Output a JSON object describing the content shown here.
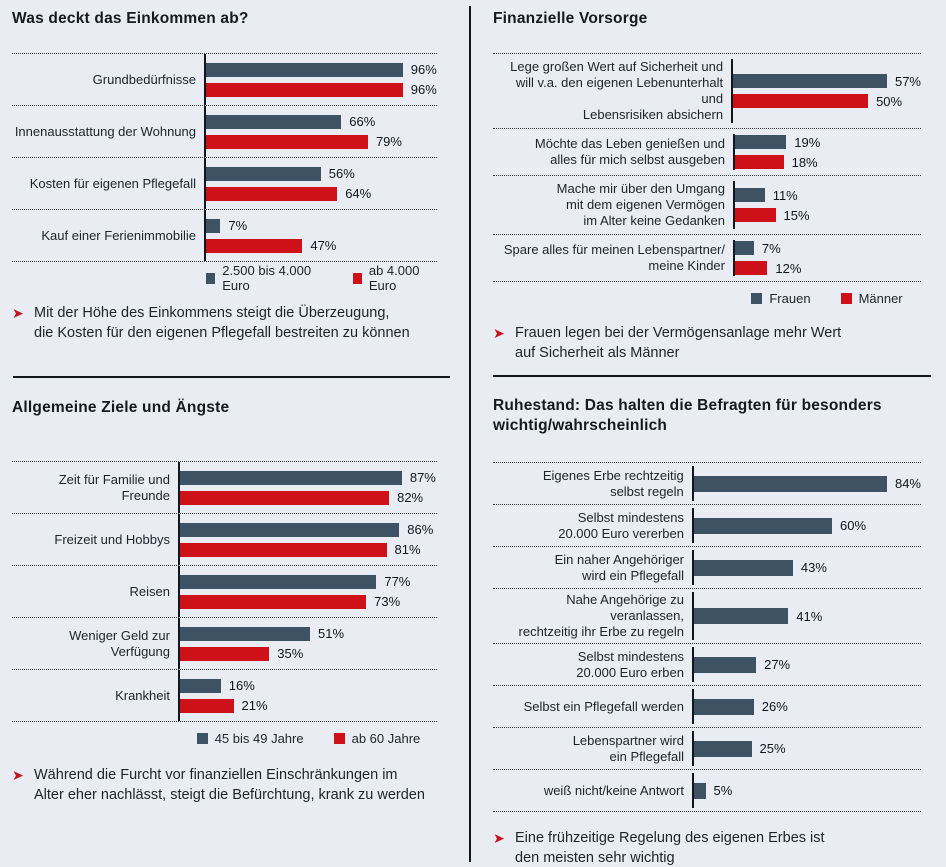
{
  "colors": {
    "background": "#e9edf3",
    "series_dark": "#3d5364",
    "series_red": "#ce1119",
    "axis": "#10161d",
    "text": "#1c232c",
    "arrow": "#c41420"
  },
  "chart_data": [
    {
      "id": "einkommen",
      "type": "bar",
      "orientation": "horizontal",
      "title": "Was deckt das Einkommen ab?",
      "value_suffix": "%",
      "xlim": [
        0,
        100
      ],
      "grid": "dotted-row-separators",
      "legend_position": "bottom",
      "categories": [
        "Grundbedürfnisse",
        "Innenausstattung der Wohnung",
        "Kosten für eigenen Pflegefall",
        "Kauf einer Ferienimmobilie"
      ],
      "series": [
        {
          "name": "2.500 bis 4.000 Euro",
          "color": "#3d5364",
          "values": [
            96,
            66,
            56,
            7
          ]
        },
        {
          "name": "ab 4.000 Euro",
          "color": "#ce1119",
          "values": [
            96,
            79,
            64,
            47
          ]
        }
      ],
      "note": "Mit der Höhe des Einkommens steigt die Überzeugung,\ndie Kosten für den eigenen Pflegefall bestreiten zu können"
    },
    {
      "id": "vorsorge",
      "type": "bar",
      "orientation": "horizontal",
      "title": "Finanzielle Vorsorge",
      "value_suffix": "%",
      "xlim": [
        0,
        100
      ],
      "grid": "dotted-row-separators",
      "legend_position": "bottom",
      "categories": [
        "Lege großen Wert auf Sicherheit und\nwill v.a. den eigenen Lebenunterhalt und\nLebensrisiken absichern",
        "Möchte das Leben genießen und\nalles für mich selbst ausgeben",
        "Mache mir über den Umgang\nmit dem eigenen Vermögen\nim Alter keine Gedanken",
        "Spare alles für meinen Lebenspartner/\nmeine Kinder"
      ],
      "series": [
        {
          "name": "Frauen",
          "color": "#3d5364",
          "values": [
            57,
            19,
            11,
            7
          ]
        },
        {
          "name": "Männer",
          "color": "#ce1119",
          "values": [
            50,
            18,
            15,
            12
          ]
        }
      ],
      "note": "Frauen legen bei der Vermögensanlage mehr Wert\nauf Sicherheit als Männer"
    },
    {
      "id": "ziele-aengste",
      "type": "bar",
      "orientation": "horizontal",
      "title": "Allgemeine Ziele und Ängste",
      "value_suffix": "%",
      "xlim": [
        0,
        100
      ],
      "grid": "dotted-row-separators",
      "legend_position": "bottom",
      "categories": [
        "Zeit für Familie und Freunde",
        "Freizeit und Hobbys",
        "Reisen",
        "Weniger Geld zur Verfügung",
        "Krankheit"
      ],
      "series": [
        {
          "name": "45 bis 49 Jahre",
          "color": "#3d5364",
          "values": [
            87,
            86,
            77,
            51,
            16
          ]
        },
        {
          "name": "ab 60 Jahre",
          "color": "#ce1119",
          "values": [
            82,
            81,
            73,
            35,
            21
          ]
        }
      ],
      "note": "Während die Furcht vor finanziellen Einschränkungen im\nAlter eher nachlässt, steigt die Befürchtung, krank zu werden"
    },
    {
      "id": "ruhestand",
      "type": "bar",
      "orientation": "horizontal",
      "title": "Ruhestand: Das halten die Befragten für besonders\nwichtig/wahrscheinlich",
      "value_suffix": "%",
      "xlim": [
        0,
        100
      ],
      "grid": "dotted-row-separators",
      "legend_position": "none",
      "categories": [
        "Eigenes Erbe rechtzeitig\nselbst regeln",
        "Selbst mindestens\n20.000 Euro vererben",
        "Ein naher Angehöriger\nwird ein Pflegefall",
        "Nahe Angehörige zu veranlassen,\nrechtzeitig ihr Erbe zu regeln",
        "Selbst mindestens\n20.000 Euro erben",
        "Selbst ein Pflegefall werden",
        "Lebenspartner wird\nein Pflegefall",
        "weiß nicht/keine Antwort"
      ],
      "series": [
        {
          "name": "",
          "color": "#3d5364",
          "values": [
            84,
            60,
            43,
            41,
            27,
            26,
            25,
            5
          ]
        }
      ],
      "note": "Eine frühzeitige Regelung des eigenen Erbes ist\nden meisten sehr wichtig"
    }
  ]
}
